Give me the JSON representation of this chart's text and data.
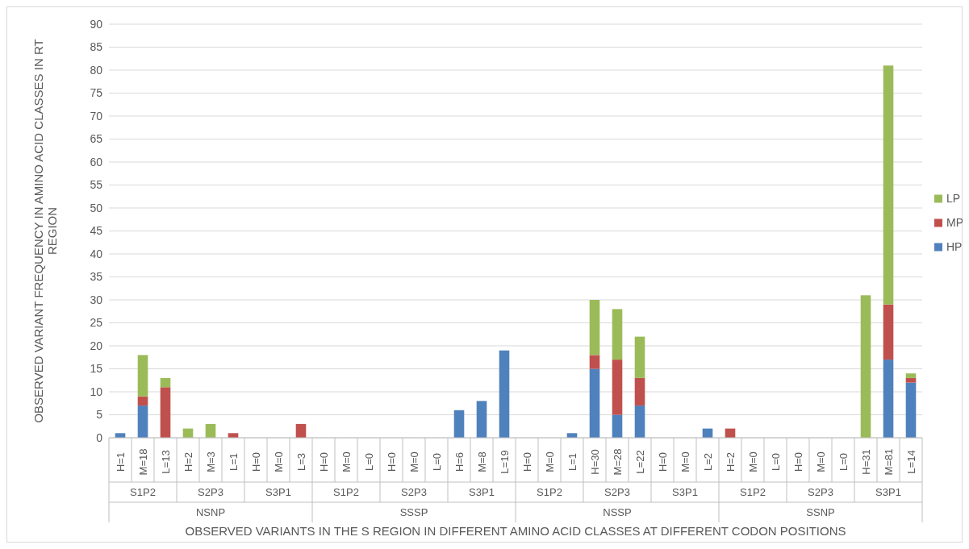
{
  "chart_data": {
    "type": "bar",
    "stacked": true,
    "xlabel": "OBSERVED VARIANTS IN THE S REGION IN DIFFERENT AMINO ACID CLASSES AT DIFFERENT CODON POSITIONS",
    "ylabel": "OBSERVED VARIANT FREQUENCY IN AMINO ACID CLASSES IN RT REGION",
    "categories": [
      "H=1",
      "M=18",
      "L=13",
      "H=2",
      "M=3",
      "L=1",
      "H=0",
      "M=0",
      "L=3",
      "H=0",
      "M=0",
      "L=0",
      "H=0",
      "M=0",
      "L=0",
      "H=6",
      "M=8",
      "L=19",
      "H=0",
      "M=0",
      "L=1",
      "H=30",
      "M=28",
      "L=22",
      "H=0",
      "M=0",
      "L=2",
      "H=2",
      "M=0",
      "L=0",
      "H=0",
      "M=0",
      "L=0",
      "H=31",
      "M=81",
      "L=14"
    ],
    "series": [
      {
        "name": "HP",
        "color": "#4f81bd",
        "values": [
          1,
          7,
          0,
          0,
          0,
          0,
          0,
          0,
          0,
          0,
          0,
          0,
          0,
          0,
          0,
          6,
          8,
          19,
          0,
          0,
          1,
          15,
          5,
          7,
          0,
          0,
          2,
          0,
          0,
          0,
          0,
          0,
          0,
          0,
          17,
          12
        ]
      },
      {
        "name": "MP",
        "color": "#c0504d",
        "values": [
          0,
          2,
          11,
          0,
          0,
          1,
          0,
          0,
          3,
          0,
          0,
          0,
          0,
          0,
          0,
          0,
          0,
          0,
          0,
          0,
          0,
          3,
          12,
          6,
          0,
          0,
          0,
          2,
          0,
          0,
          0,
          0,
          0,
          0,
          12,
          1
        ]
      },
      {
        "name": "LP",
        "color": "#9bbb59",
        "values": [
          0,
          9,
          2,
          2,
          3,
          0,
          0,
          0,
          0,
          0,
          0,
          0,
          0,
          0,
          0,
          0,
          0,
          0,
          0,
          0,
          0,
          12,
          11,
          9,
          0,
          0,
          0,
          0,
          0,
          0,
          0,
          0,
          0,
          31,
          52,
          1
        ]
      }
    ],
    "annotations": [
      "S1P2",
      "S2P3",
      "S3P1",
      "S1P2",
      "S2P3",
      "S3P1",
      "S1P2",
      "S2P3",
      "S3P1",
      "S1P2",
      "S2P3",
      "S3P1",
      "NSNP",
      "SSSP",
      "NSSP",
      "SSNP"
    ],
    "ylim": [
      0,
      90
    ],
    "yticks": [
      0,
      5,
      10,
      15,
      20,
      25,
      30,
      35,
      40,
      45,
      50,
      55,
      60,
      65,
      70,
      75,
      80,
      85,
      90
    ],
    "grid": "y",
    "legend": "right"
  }
}
